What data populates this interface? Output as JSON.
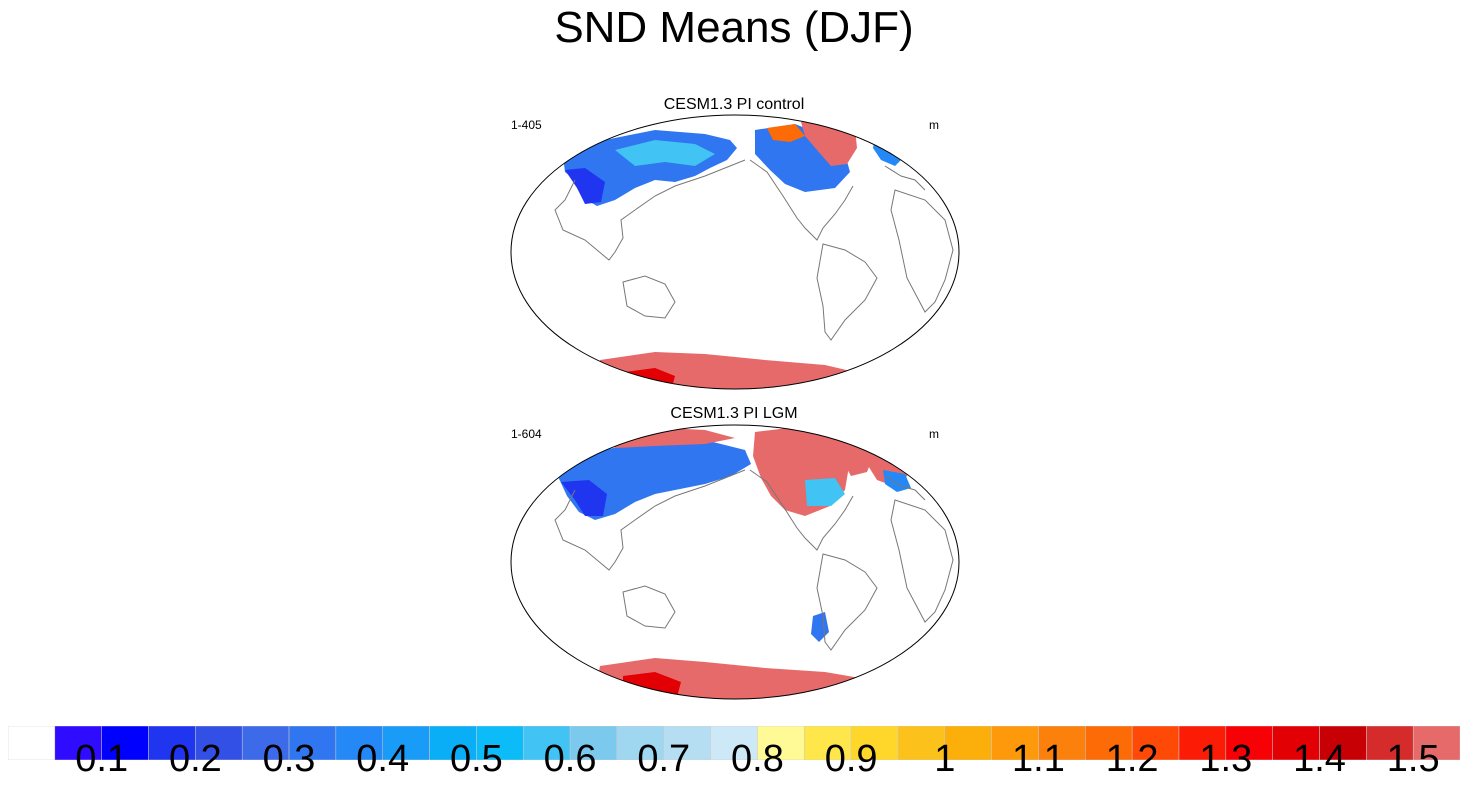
{
  "figure": {
    "title": "SND Means (DJF)"
  },
  "panels": [
    {
      "title": "CESM1.3 PI control",
      "left_label": "1-405",
      "right_label": "m"
    },
    {
      "title": "CESM1.3 PI LGM",
      "left_label": "1-604",
      "right_label": "m"
    }
  ],
  "colorbar": {
    "labels": [
      "0.1",
      "0.2",
      "0.3",
      "0.4",
      "0.5",
      "0.6",
      "0.7",
      "0.8",
      "0.9",
      "1",
      "1.1",
      "1.2",
      "1.3",
      "1.4",
      "1.5"
    ],
    "colors": [
      "#ffffff",
      "#2f0bff",
      "#0000ff",
      "#1f35ef",
      "#3350e6",
      "#3d6ae8",
      "#2f76f0",
      "#2488f6",
      "#199cf8",
      "#0aaef6",
      "#0bbcf8",
      "#41c3f4",
      "#7cc9ee",
      "#9fd6f0",
      "#b6def3",
      "#cde8f6",
      "#fffa96",
      "#ffe64a",
      "#ffd72a",
      "#fcc21b",
      "#fcae0a",
      "#fd990a",
      "#fc800c",
      "#fd6b06",
      "#fe4a06",
      "#fc1c06",
      "#f70006",
      "#e20004",
      "#c60004",
      "#d52b2b",
      "#e66a6a"
    ]
  }
}
